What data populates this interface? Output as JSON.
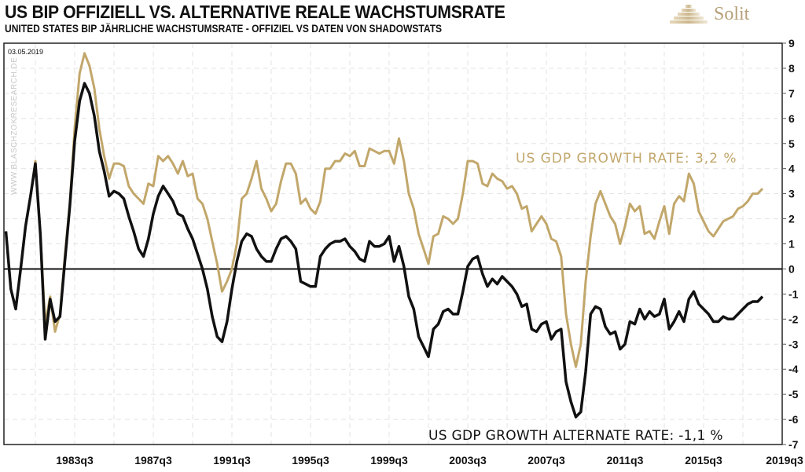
{
  "header": {
    "title": "US BIP OFFIZIELL VS. ALTERNATIVE REALE WACHSTUMSRATE",
    "subtitle": "UNITED STATES BIP JÄHRLICHE WACHSTUMSRATE  - OFFIZIEL VS  DATEN  VON  SHADOWSTATS",
    "logo_text": "Solit",
    "logo_icon": "pyramid-icon"
  },
  "chart_data": {
    "type": "line",
    "title": "US BIP OFFIZIELL VS. ALTERNATIVE REALE WACHSTUMSRATE",
    "subtitle": "UNITED STATES BIP JÄHRLICHE WACHSTUMSRATE  - OFFIZIEL VS  DATEN  VON  SHADOWSTATS",
    "date_stamp": "03.05.2019",
    "watermark": "WWW.BLASCHZOKRESEARCH.DE",
    "xlabel": "",
    "ylabel": "",
    "x_start": "1980q1",
    "x_frequency": "quarterly",
    "x_range_quarters": [
      0,
      158
    ],
    "ylim": [
      -7,
      9
    ],
    "y_ticks": [
      9,
      8,
      7,
      6,
      5,
      4,
      3,
      2,
      1,
      0,
      -1,
      -2,
      -3,
      -4,
      -5,
      -6,
      -7
    ],
    "y_axis_side": "right",
    "x_ticks": [
      {
        "label": "1983q3",
        "q": 14
      },
      {
        "label": "1987q3",
        "q": 30
      },
      {
        "label": "1991q3",
        "q": 46
      },
      {
        "label": "1995q3",
        "q": 62
      },
      {
        "label": "1999q3",
        "q": 78
      },
      {
        "label": "2003q3",
        "q": 94
      },
      {
        "label": "2007q3",
        "q": 110
      },
      {
        "label": "2011q3",
        "q": 126
      },
      {
        "label": "2015q3",
        "q": 142
      },
      {
        "label": "2019q3",
        "q": 158
      }
    ],
    "grid": true,
    "zero_line": true,
    "series": [
      {
        "name": "US GDP Growth Rate (official)",
        "color": "#c2a76b",
        "annotation": "US GDP  GROWTH  RATE: 3,2 %",
        "values": [
          1.5,
          -0.8,
          -1.6,
          0.0,
          1.7,
          2.9,
          4.3,
          1.4,
          -2.2,
          -1.1,
          -2.5,
          -1.8,
          0.5,
          2.6,
          5.6,
          7.8,
          8.6,
          8.1,
          7.2,
          5.6,
          4.5,
          3.6,
          4.2,
          4.2,
          4.1,
          3.3,
          3.0,
          2.8,
          2.6,
          3.4,
          3.3,
          4.5,
          4.3,
          4.5,
          4.2,
          3.8,
          4.3,
          3.7,
          3.8,
          2.8,
          2.6,
          2.0,
          1.1,
          0.2,
          -0.9,
          -0.5,
          0.0,
          1.0,
          2.8,
          3.0,
          3.6,
          4.3,
          3.2,
          2.8,
          2.3,
          2.6,
          3.5,
          4.2,
          4.2,
          3.8,
          2.6,
          2.8,
          2.4,
          2.2,
          2.7,
          4.0,
          4.0,
          4.3,
          4.3,
          4.6,
          4.5,
          4.7,
          4.1,
          4.1,
          4.8,
          4.7,
          4.6,
          4.7,
          4.7,
          4.2,
          5.2,
          4.3,
          3.0,
          2.4,
          1.4,
          0.8,
          0.2,
          1.3,
          1.4,
          2.1,
          2.0,
          1.8,
          2.0,
          3.0,
          4.3,
          4.3,
          4.2,
          3.4,
          3.3,
          3.8,
          3.6,
          3.5,
          3.2,
          3.3,
          3.0,
          2.4,
          2.5,
          1.5,
          1.8,
          2.1,
          1.8,
          1.2,
          1.1,
          0.5,
          -1.8,
          -3.0,
          -3.9,
          -3.0,
          -0.5,
          1.3,
          2.6,
          3.1,
          2.6,
          2.1,
          1.8,
          1.0,
          1.7,
          2.6,
          2.3,
          2.5,
          1.4,
          1.5,
          1.2,
          1.9,
          2.5,
          1.4,
          2.6,
          2.9,
          2.7,
          3.8,
          3.4,
          2.3,
          1.9,
          1.5,
          1.3,
          1.6,
          1.9,
          2.0,
          2.1,
          2.4,
          2.5,
          2.7,
          3.0,
          3.0,
          3.2
        ]
      },
      {
        "name": "US GDP Growth Alternate Rate (ShadowStats)",
        "color": "#111111",
        "annotation": "US GDP GROWTH ALTERNATE  RATE: -1,1 %",
        "values": [
          1.5,
          -0.8,
          -1.6,
          0.0,
          1.7,
          2.9,
          4.2,
          1.4,
          -2.8,
          -1.2,
          -2.1,
          -1.9,
          0.3,
          2.5,
          5.1,
          6.7,
          7.4,
          7.0,
          6.1,
          4.7,
          3.9,
          2.9,
          3.1,
          3.0,
          2.8,
          2.1,
          1.5,
          0.8,
          0.5,
          1.2,
          2.2,
          2.9,
          3.3,
          3.0,
          2.7,
          2.2,
          2.1,
          1.6,
          1.2,
          0.6,
          0.0,
          -0.8,
          -1.9,
          -2.7,
          -2.9,
          -2.1,
          -0.8,
          0.3,
          1.1,
          1.4,
          1.3,
          0.8,
          0.5,
          0.3,
          0.3,
          0.8,
          1.2,
          1.3,
          1.1,
          0.8,
          -0.5,
          -0.6,
          -0.7,
          -0.7,
          0.5,
          0.8,
          1.0,
          1.1,
          1.1,
          1.2,
          0.9,
          0.7,
          0.4,
          0.3,
          1.1,
          0.9,
          0.9,
          1.0,
          1.3,
          0.3,
          0.9,
          0.1,
          -1.1,
          -1.6,
          -2.7,
          -3.1,
          -3.5,
          -2.4,
          -2.2,
          -1.7,
          -1.6,
          -1.8,
          -1.8,
          -0.9,
          0.1,
          0.4,
          0.5,
          -0.2,
          -0.7,
          -0.4,
          -0.6,
          -0.3,
          -0.5,
          -0.7,
          -1.0,
          -1.5,
          -1.4,
          -2.4,
          -2.5,
          -2.2,
          -2.1,
          -2.8,
          -2.5,
          -2.4,
          -4.5,
          -5.3,
          -5.9,
          -5.7,
          -4.1,
          -1.8,
          -1.5,
          -1.6,
          -2.3,
          -2.6,
          -2.5,
          -3.2,
          -3.0,
          -2.1,
          -2.2,
          -1.6,
          -2.0,
          -1.7,
          -1.9,
          -1.8,
          -1.2,
          -2.4,
          -2.1,
          -1.7,
          -2.1,
          -1.2,
          -0.9,
          -1.4,
          -1.6,
          -1.8,
          -2.1,
          -2.1,
          -1.9,
          -2.0,
          -2.0,
          -1.8,
          -1.6,
          -1.4,
          -1.3,
          -1.3,
          -1.1
        ]
      }
    ]
  }
}
